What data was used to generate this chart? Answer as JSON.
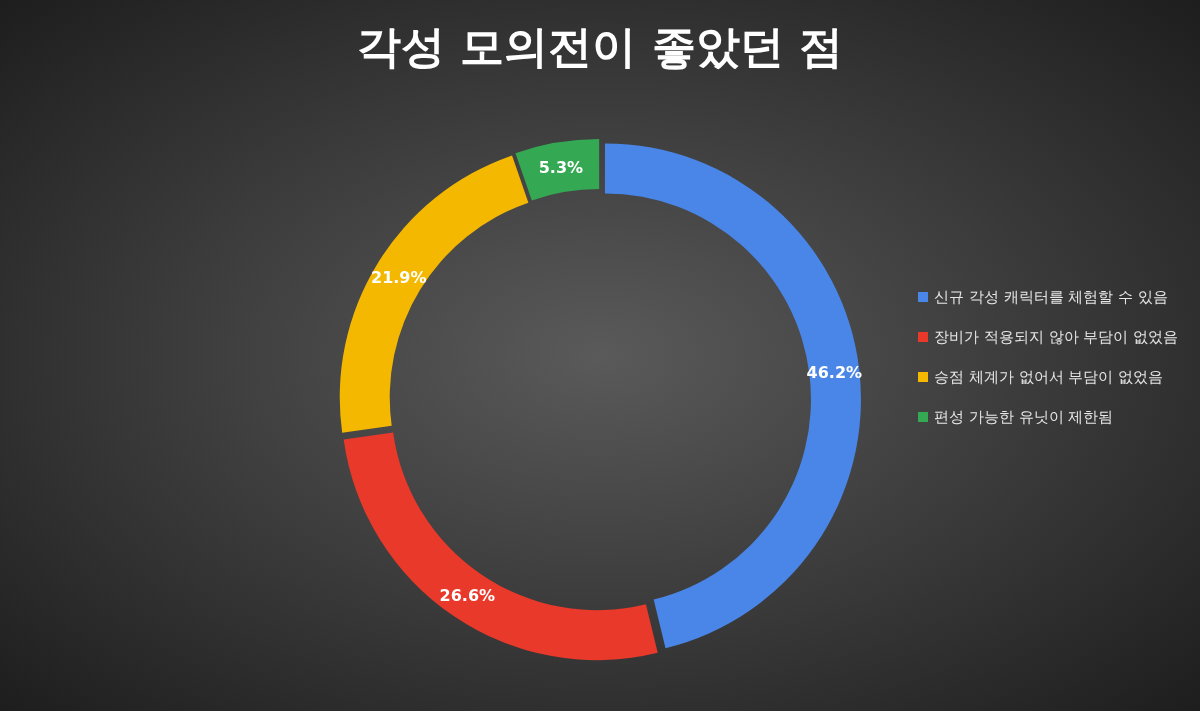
{
  "chart_data": {
    "type": "donut",
    "title": "각성 모의전이 좋았던 점",
    "categories": [
      "신규 각성 캐릭터를 체험할 수 있음",
      "장비가 적용되지 않아 부담이 없었음",
      "승점 체계가 없어서 부담이 없었음",
      "편성 가능한 유닛이 제한됨"
    ],
    "values": [
      46.2,
      26.6,
      21.9,
      5.3
    ],
    "value_labels": [
      "46.2%",
      "26.6%",
      "21.9%",
      "5.3%"
    ],
    "colors": [
      "#4a86e8",
      "#e8392a",
      "#f5b800",
      "#34a853"
    ],
    "legend": "right"
  }
}
